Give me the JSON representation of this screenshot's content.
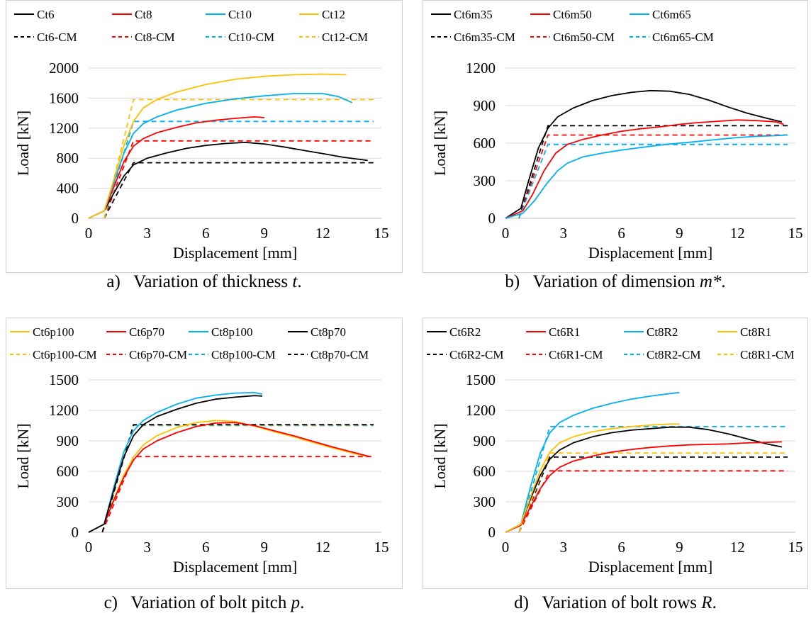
{
  "chart_data": [
    {
      "type": "line",
      "panel": "a",
      "caption": {
        "prefix": "a)",
        "text": "Variation of thickness ",
        "variable": "t",
        "suffix": "."
      },
      "xlabel": "Displacement [mm]",
      "ylabel": "Load [kN]",
      "xlim": [
        0,
        15
      ],
      "ylim": [
        0,
        2000
      ],
      "xticks": [
        0,
        3,
        6,
        9,
        12,
        15
      ],
      "yticks": [
        0,
        400,
        800,
        1200,
        1600,
        2000
      ],
      "grid": "horizontal",
      "legend": "top",
      "series": [
        {
          "name": "Ct6",
          "color": "#000000",
          "style": "solid",
          "x": [
            0,
            0.8,
            1.3,
            1.8,
            2.3,
            3,
            4,
            5,
            6,
            7,
            8,
            9,
            10,
            11,
            12,
            13,
            14.3
          ],
          "y": [
            0,
            100,
            340,
            560,
            710,
            800,
            870,
            930,
            970,
            995,
            1010,
            990,
            950,
            905,
            860,
            815,
            770
          ]
        },
        {
          "name": "Ct8",
          "color": "#ff0000",
          "style": "solid",
          "x": [
            0,
            0.8,
            1.3,
            1.8,
            2.3,
            2.8,
            3.5,
            4.5,
            5.5,
            6.5,
            7.5,
            8.5,
            9
          ],
          "y": [
            0,
            100,
            420,
            750,
            960,
            1060,
            1140,
            1210,
            1270,
            1305,
            1330,
            1350,
            1340
          ]
        },
        {
          "name": "Ct10",
          "color": "#00b0f0",
          "style": "solid",
          "x": [
            0,
            0.8,
            1.3,
            1.8,
            2.3,
            2.8,
            3.5,
            4.5,
            6,
            7.5,
            9,
            10.5,
            12,
            12.8,
            13.5
          ],
          "y": [
            0,
            100,
            480,
            860,
            1130,
            1260,
            1350,
            1440,
            1530,
            1590,
            1630,
            1660,
            1660,
            1620,
            1540
          ]
        },
        {
          "name": "Ct12",
          "color": "#ffc000",
          "style": "solid",
          "x": [
            0,
            0.8,
            1.3,
            1.8,
            2.3,
            2.8,
            3.5,
            4.5,
            6,
            7.5,
            9,
            10.5,
            12,
            13.2
          ],
          "y": [
            0,
            100,
            520,
            960,
            1290,
            1470,
            1580,
            1680,
            1780,
            1850,
            1890,
            1910,
            1920,
            1910
          ]
        },
        {
          "name": "Ct6-CM",
          "color": "#000000",
          "style": "dashed",
          "x": [
            0.8,
            2.3,
            14.6
          ],
          "y": [
            0,
            740,
            740
          ]
        },
        {
          "name": "Ct8-CM",
          "color": "#ff0000",
          "style": "dashed",
          "x": [
            0.8,
            2.3,
            14.6
          ],
          "y": [
            0,
            1030,
            1030
          ]
        },
        {
          "name": "Ct10-CM",
          "color": "#00b0f0",
          "style": "dashed",
          "x": [
            0.8,
            2.3,
            14.6
          ],
          "y": [
            0,
            1290,
            1290
          ]
        },
        {
          "name": "Ct12-CM",
          "color": "#ffc000",
          "style": "dashed",
          "x": [
            0.8,
            2.3,
            14.6
          ],
          "y": [
            0,
            1580,
            1580
          ]
        }
      ]
    },
    {
      "type": "line",
      "panel": "b",
      "caption": {
        "prefix": "b)",
        "text": "Variation of dimension ",
        "variable": "m*",
        "suffix": "."
      },
      "xlabel": "Displacement [mm]",
      "ylabel": "Load [kN]",
      "xlim": [
        0,
        15
      ],
      "ylim": [
        0,
        1200
      ],
      "xticks": [
        0,
        3,
        6,
        9,
        12,
        15
      ],
      "yticks": [
        0,
        300,
        600,
        900,
        1200
      ],
      "grid": "horizontal",
      "legend": "top",
      "series": [
        {
          "name": "Ct6m35",
          "color": "#000000",
          "style": "solid",
          "x": [
            0,
            0.8,
            1.2,
            1.7,
            2.2,
            2.7,
            3.5,
            4.5,
            5.5,
            6.5,
            7.5,
            8.5,
            9.5,
            10.5,
            11.5,
            12.5,
            13.5,
            14.3
          ],
          "y": [
            0,
            80,
            300,
            560,
            720,
            810,
            880,
            940,
            980,
            1005,
            1020,
            1015,
            990,
            945,
            890,
            840,
            800,
            770
          ]
        },
        {
          "name": "Ct6m50",
          "color": "#ff0000",
          "style": "solid",
          "x": [
            0,
            0.9,
            1.4,
            2,
            2.6,
            3.2,
            4,
            5,
            6,
            7,
            8,
            9,
            10,
            11,
            12,
            13,
            14,
            14.4
          ],
          "y": [
            0,
            60,
            190,
            380,
            520,
            590,
            630,
            665,
            695,
            715,
            730,
            750,
            765,
            775,
            785,
            780,
            770,
            750
          ]
        },
        {
          "name": "Ct6m65",
          "color": "#00b0f0",
          "style": "solid",
          "x": [
            0,
            0.9,
            1.5,
            2.1,
            2.7,
            3.2,
            4,
            5,
            6,
            7,
            8,
            9,
            10,
            11,
            12,
            13,
            14,
            14.6
          ],
          "y": [
            0,
            40,
            140,
            270,
            380,
            440,
            490,
            520,
            545,
            565,
            585,
            600,
            615,
            630,
            645,
            655,
            660,
            665
          ]
        },
        {
          "name": "Ct6m35-CM",
          "color": "#000000",
          "style": "dashed",
          "x": [
            0.7,
            2.2,
            14.6
          ],
          "y": [
            0,
            740,
            740
          ]
        },
        {
          "name": "Ct6m50-CM",
          "color": "#ff0000",
          "style": "dashed",
          "x": [
            0.7,
            2.2,
            14.6
          ],
          "y": [
            0,
            665,
            665
          ]
        },
        {
          "name": "Ct6m65-CM",
          "color": "#00b0f0",
          "style": "dashed",
          "x": [
            0.7,
            2.2,
            14.6
          ],
          "y": [
            0,
            590,
            590
          ]
        }
      ]
    },
    {
      "type": "line",
      "panel": "c",
      "caption": {
        "prefix": "c)",
        "text": "Variation of bolt pitch ",
        "variable": "p",
        "suffix": "."
      },
      "xlabel": "Displacement [mm]",
      "ylabel": "Load [kN]",
      "xlim": [
        0,
        15
      ],
      "ylim": [
        0,
        1500
      ],
      "xticks": [
        0,
        3,
        6,
        9,
        12,
        15
      ],
      "yticks": [
        0,
        300,
        600,
        900,
        1200,
        1500
      ],
      "grid": "horizontal",
      "legend": "top",
      "series": [
        {
          "name": "Ct6p100",
          "color": "#ffc000",
          "style": "solid",
          "x": [
            0,
            0.8,
            1.3,
            1.8,
            2.3,
            2.8,
            3.5,
            4.5,
            5.5,
            6.5,
            7.5,
            8.5,
            9.5,
            10.5,
            11.5,
            12.5,
            13.5,
            14.2
          ],
          "y": [
            0,
            80,
            330,
            560,
            740,
            860,
            950,
            1030,
            1080,
            1100,
            1090,
            1045,
            990,
            940,
            885,
            830,
            780,
            750
          ]
        },
        {
          "name": "Ct6p70",
          "color": "#ff0000",
          "style": "solid",
          "x": [
            0,
            0.8,
            1.3,
            1.8,
            2.3,
            2.8,
            3.5,
            4.5,
            5.5,
            6.5,
            7.5,
            8.5,
            9.5,
            10.5,
            11.5,
            12.5,
            13.5,
            14.4
          ],
          "y": [
            0,
            80,
            320,
            540,
            710,
            820,
            900,
            980,
            1040,
            1075,
            1080,
            1050,
            1000,
            950,
            895,
            840,
            790,
            745
          ]
        },
        {
          "name": "Ct8p100",
          "color": "#00b0f0",
          "style": "solid",
          "x": [
            0,
            0.8,
            1.3,
            1.8,
            2.3,
            2.8,
            3.5,
            4.5,
            5.5,
            6.5,
            7.5,
            8.5,
            8.9
          ],
          "y": [
            0,
            80,
            450,
            790,
            1000,
            1100,
            1180,
            1260,
            1320,
            1350,
            1370,
            1375,
            1360
          ]
        },
        {
          "name": "Ct8p70",
          "color": "#000000",
          "style": "solid",
          "x": [
            0,
            0.8,
            1.3,
            1.8,
            2.3,
            2.8,
            3.5,
            4.5,
            5.5,
            6.5,
            7.5,
            8.5,
            8.9
          ],
          "y": [
            0,
            80,
            420,
            740,
            950,
            1060,
            1140,
            1210,
            1270,
            1310,
            1330,
            1345,
            1340
          ]
        },
        {
          "name": "Ct6p100-CM",
          "color": "#ffc000",
          "style": "dashed",
          "x": [
            0.7,
            2.3,
            14.6
          ],
          "y": [
            0,
            1050,
            1050
          ]
        },
        {
          "name": "Ct6p70-CM",
          "color": "#ff0000",
          "style": "dashed",
          "x": [
            0.7,
            2.3,
            14.6
          ],
          "y": [
            0,
            745,
            745
          ]
        },
        {
          "name": "Ct8p100-CM",
          "color": "#00b0f0",
          "style": "dashed",
          "x": [
            0.7,
            2.3,
            14.6
          ],
          "y": [
            0,
            1055,
            1055
          ]
        },
        {
          "name": "Ct8p70-CM",
          "color": "#000000",
          "style": "dashed",
          "x": [
            0.7,
            2.3,
            14.6
          ],
          "y": [
            0,
            1060,
            1060
          ]
        }
      ]
    },
    {
      "type": "line",
      "panel": "d",
      "caption": {
        "prefix": "d)",
        "text": "Variation of bolt rows ",
        "variable": "R",
        "suffix": "."
      },
      "xlabel": "Displacement [mm]",
      "ylabel": "Load [kN]",
      "xlim": [
        0,
        15
      ],
      "ylim": [
        0,
        1500
      ],
      "xticks": [
        0,
        3,
        6,
        9,
        12,
        15
      ],
      "yticks": [
        0,
        300,
        600,
        900,
        1200,
        1500
      ],
      "grid": "horizontal",
      "legend": "top",
      "series": [
        {
          "name": "Ct6R2",
          "color": "#000000",
          "style": "solid",
          "x": [
            0,
            0.8,
            1.3,
            1.8,
            2.3,
            2.8,
            3.5,
            4.5,
            5.5,
            6.5,
            7.5,
            8.5,
            9.5,
            10.5,
            11.5,
            12.5,
            13.5,
            14.3
          ],
          "y": [
            0,
            80,
            330,
            560,
            720,
            810,
            880,
            940,
            980,
            1005,
            1020,
            1035,
            1035,
            1010,
            970,
            920,
            870,
            840
          ]
        },
        {
          "name": "Ct6R1",
          "color": "#ff0000",
          "style": "solid",
          "x": [
            0,
            0.8,
            1.3,
            1.8,
            2.3,
            2.8,
            3.5,
            4.5,
            5.5,
            6.5,
            7.5,
            8.5,
            9.5,
            10.5,
            11.5,
            12.5,
            13.5,
            14.3
          ],
          "y": [
            0,
            70,
            250,
            430,
            560,
            640,
            700,
            750,
            790,
            815,
            835,
            850,
            860,
            865,
            870,
            880,
            885,
            890
          ]
        },
        {
          "name": "Ct8R2",
          "color": "#00b0f0",
          "style": "solid",
          "x": [
            0,
            0.8,
            1.3,
            1.8,
            2.3,
            2.8,
            3.5,
            4.5,
            5.5,
            6.5,
            7.5,
            8.5,
            9
          ],
          "y": [
            0,
            80,
            450,
            780,
            980,
            1080,
            1150,
            1220,
            1270,
            1310,
            1340,
            1365,
            1375
          ]
        },
        {
          "name": "Ct8R1",
          "color": "#ffc000",
          "style": "solid",
          "x": [
            0,
            0.8,
            1.3,
            1.8,
            2.3,
            2.8,
            3.5,
            4.5,
            5.5,
            6.5,
            7.5,
            8.5,
            9
          ],
          "y": [
            0,
            80,
            350,
            610,
            790,
            880,
            940,
            990,
            1020,
            1040,
            1055,
            1065,
            1065
          ]
        },
        {
          "name": "Ct6R2-CM",
          "color": "#000000",
          "style": "dashed",
          "x": [
            0.7,
            2.3,
            14.6
          ],
          "y": [
            0,
            740,
            740
          ]
        },
        {
          "name": "Ct6R1-CM",
          "color": "#ff0000",
          "style": "dashed",
          "x": [
            0.7,
            2.3,
            14.6
          ],
          "y": [
            0,
            605,
            605
          ]
        },
        {
          "name": "Ct8R2-CM",
          "color": "#00b0f0",
          "style": "dashed",
          "x": [
            0.7,
            2.3,
            14.6
          ],
          "y": [
            0,
            1040,
            1040
          ]
        },
        {
          "name": "Ct8R1-CM",
          "color": "#ffc000",
          "style": "dashed",
          "x": [
            0.7,
            2.3,
            14.6
          ],
          "y": [
            0,
            780,
            780
          ]
        }
      ]
    }
  ]
}
